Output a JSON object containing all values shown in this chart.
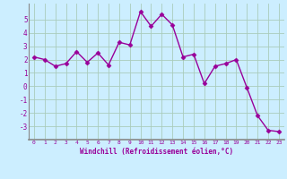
{
  "x": [
    0,
    1,
    2,
    3,
    4,
    5,
    6,
    7,
    8,
    9,
    10,
    11,
    12,
    13,
    14,
    15,
    16,
    17,
    18,
    19,
    20,
    21,
    22,
    23
  ],
  "y": [
    2.2,
    2.0,
    1.5,
    1.7,
    2.6,
    1.8,
    2.5,
    1.6,
    3.3,
    3.1,
    5.6,
    4.5,
    5.4,
    4.6,
    2.2,
    2.4,
    0.2,
    1.5,
    1.7,
    2.0,
    -0.1,
    -2.2,
    -3.3,
    -3.4
  ],
  "line_color": "#990099",
  "marker": "D",
  "marker_size": 2.5,
  "bg_color": "#cceeff",
  "grid_color": "#aaccbb",
  "xlabel": "Windchill (Refroidissement éolien,°C)",
  "tick_color": "#990099",
  "ylim": [
    -4.0,
    6.2
  ],
  "yticks": [
    -3,
    -2,
    -1,
    0,
    1,
    2,
    3,
    4,
    5
  ],
  "xlim": [
    -0.5,
    23.5
  ],
  "xlabel_fontsize": 5.5,
  "tick_fontsize_x": 4.5,
  "tick_fontsize_y": 5.5,
  "linewidth": 1.0
}
